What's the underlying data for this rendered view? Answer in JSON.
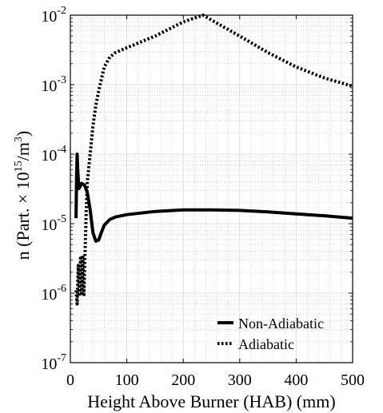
{
  "chart_data": {
    "type": "line",
    "xlabel": "Height Above Burner (HAB) (mm)",
    "ylabel": {
      "prefix": "n (Part. × 10",
      "exp1": "15",
      "mid": "/m",
      "exp2": "3",
      "suffix": ")"
    },
    "xlim": [
      0,
      500
    ],
    "ylim_log10": [
      -7,
      -2
    ],
    "y_scale": "log",
    "grid": true,
    "minor_grid": true,
    "legend_position": "bottom-right",
    "x_ticks": [
      0,
      100,
      200,
      300,
      400,
      500
    ],
    "x_tick_labels": [
      "0",
      "100",
      "200",
      "300",
      "400",
      "500"
    ],
    "y_ticks": [
      {
        "value": 1e-07,
        "base": "10",
        "exp": "-7"
      },
      {
        "value": 1e-06,
        "base": "10",
        "exp": "-6"
      },
      {
        "value": 1e-05,
        "base": "10",
        "exp": "-5"
      },
      {
        "value": 0.0001,
        "base": "10",
        "exp": "-4"
      },
      {
        "value": 0.001,
        "base": "10",
        "exp": "-3"
      },
      {
        "value": 0.01,
        "base": "10",
        "exp": "-2"
      }
    ],
    "series": [
      {
        "name": "Non-Adiabatic",
        "style": "solid",
        "color": "#000000",
        "x": [
          10,
          11,
          12,
          13,
          15,
          17,
          20,
          25,
          30,
          35,
          40,
          45,
          50,
          55,
          60,
          70,
          80,
          100,
          150,
          200,
          250,
          300,
          350,
          400,
          450,
          500
        ],
        "y": [
          1.2e-05,
          5e-05,
          0.0001,
          6e-05,
          3.2e-05,
          3.4e-05,
          3.8e-05,
          3.6e-05,
          2.8e-05,
          1.6e-05,
          7.5e-06,
          5.6e-06,
          5.8e-06,
          7.5e-06,
          9.5e-06,
          1.15e-05,
          1.25e-05,
          1.35e-05,
          1.5e-05,
          1.58e-05,
          1.58e-05,
          1.55e-05,
          1.48e-05,
          1.38e-05,
          1.3e-05,
          1.2e-05
        ]
      },
      {
        "name": "Adiabatic",
        "style": "dotted",
        "color": "#000000",
        "x": [
          10,
          12,
          14,
          16,
          18,
          20,
          22,
          24,
          26,
          28,
          30,
          35,
          40,
          45,
          50,
          55,
          60,
          70,
          80,
          100,
          150,
          200,
          235,
          250,
          300,
          350,
          400,
          450,
          500
        ],
        "y": [
          1.1e-06,
          7e-07,
          2.5e-06,
          9e-07,
          3.2e-06,
          1e-06,
          3.5e-06,
          9e-07,
          4e-06,
          1.5e-05,
          4e-05,
          0.0001,
          0.00025,
          0.0005,
          0.0008,
          0.0012,
          0.0018,
          0.0025,
          0.0029,
          0.0034,
          0.005,
          0.008,
          0.01,
          0.0085,
          0.005,
          0.0029,
          0.0018,
          0.00125,
          0.00095
        ]
      }
    ]
  }
}
